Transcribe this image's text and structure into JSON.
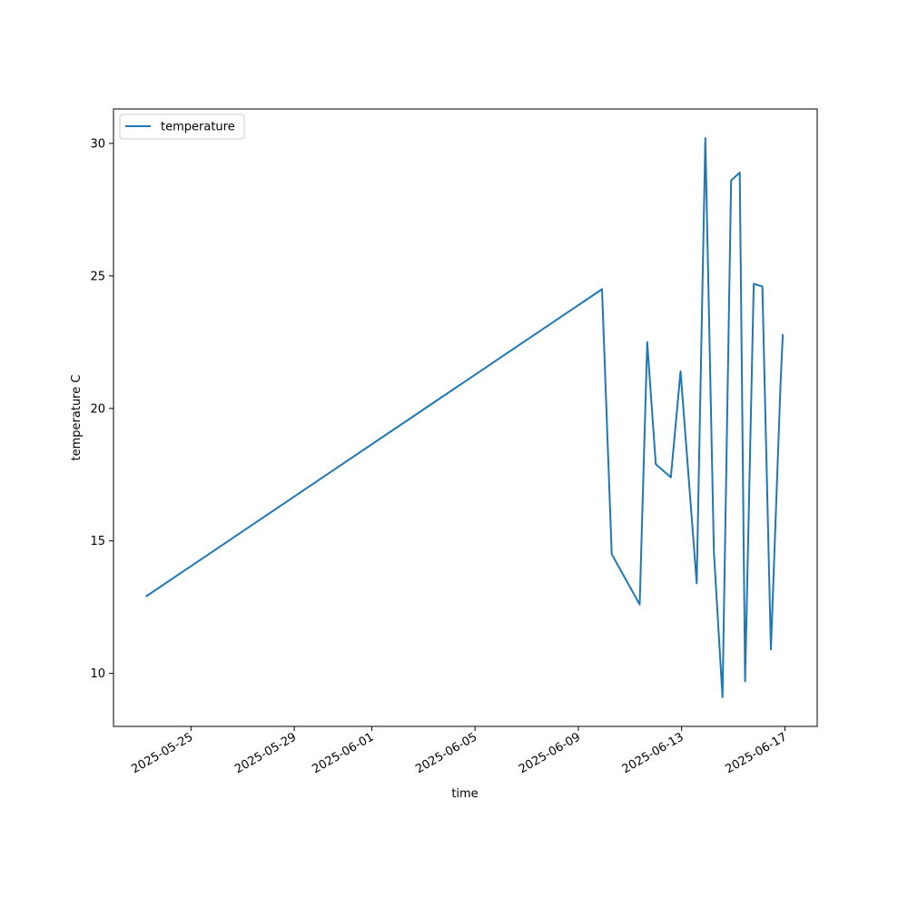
{
  "chart_data": {
    "type": "line",
    "xlabel": "time",
    "ylabel": "temperature C",
    "x_type": "date",
    "xlim": [
      "2025-05-22T00:00",
      "2025-06-18T06:00"
    ],
    "ylim": [
      8.0,
      31.3
    ],
    "x_ticks": [
      "2025-05-25",
      "2025-05-29",
      "2025-06-01",
      "2025-06-05",
      "2025-06-09",
      "2025-06-13",
      "2025-06-17"
    ],
    "y_ticks": [
      10,
      15,
      20,
      25,
      30
    ],
    "grid": false,
    "legend_position": "top-left",
    "series": [
      {
        "name": "temperature",
        "color": "#1f77b4",
        "points": [
          {
            "x": "2025-05-23T06:00",
            "y": 12.9
          },
          {
            "x": "2025-06-09T22:00",
            "y": 24.5
          },
          {
            "x": "2025-06-10T07:00",
            "y": 14.5
          },
          {
            "x": "2025-06-11T09:00",
            "y": 12.6
          },
          {
            "x": "2025-06-11T16:00",
            "y": 22.5
          },
          {
            "x": "2025-06-12T00:00",
            "y": 17.9
          },
          {
            "x": "2025-06-12T14:00",
            "y": 17.4
          },
          {
            "x": "2025-06-12T23:00",
            "y": 21.4
          },
          {
            "x": "2025-06-13T14:00",
            "y": 13.4
          },
          {
            "x": "2025-06-13T22:00",
            "y": 30.2
          },
          {
            "x": "2025-06-14T06:00",
            "y": 14.6
          },
          {
            "x": "2025-06-14T14:00",
            "y": 9.1
          },
          {
            "x": "2025-06-14T22:00",
            "y": 28.6
          },
          {
            "x": "2025-06-15T06:00",
            "y": 28.9
          },
          {
            "x": "2025-06-15T11:00",
            "y": 9.7
          },
          {
            "x": "2025-06-15T19:00",
            "y": 24.7
          },
          {
            "x": "2025-06-16T03:00",
            "y": 24.6
          },
          {
            "x": "2025-06-16T11:00",
            "y": 10.9
          },
          {
            "x": "2025-06-16T20:00",
            "y": 21.0
          },
          {
            "x": "2025-06-16T22:00",
            "y": 22.8
          }
        ]
      }
    ]
  }
}
